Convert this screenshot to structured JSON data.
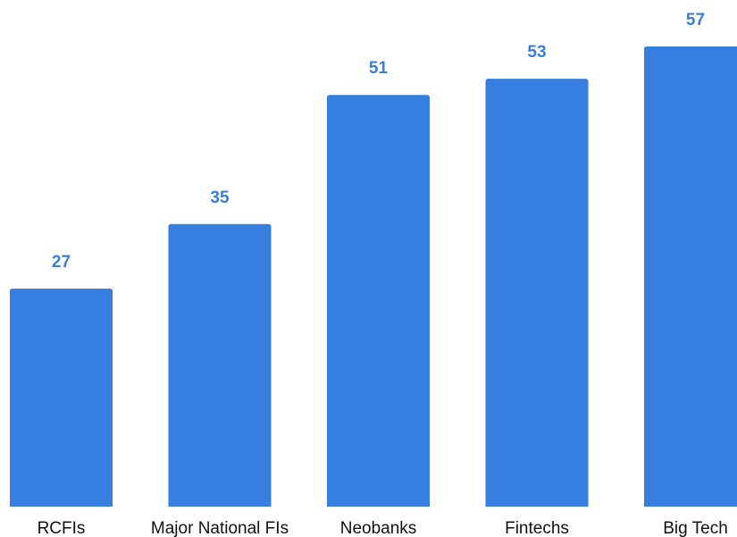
{
  "chart_data": {
    "type": "bar",
    "categories": [
      "RCFIs",
      "Major National FIs",
      "Neobanks",
      "Fintechs",
      "Big Tech"
    ],
    "values": [
      27,
      35,
      51,
      53,
      57
    ],
    "data_labels": [
      "27",
      "35",
      "51",
      "53",
      "57"
    ],
    "ylim": [
      0,
      57
    ],
    "grid": false,
    "legend": "none",
    "colors": {
      "bar": "#367ee0",
      "value_label": "#3a7fd5",
      "category_label": "#111111"
    }
  }
}
